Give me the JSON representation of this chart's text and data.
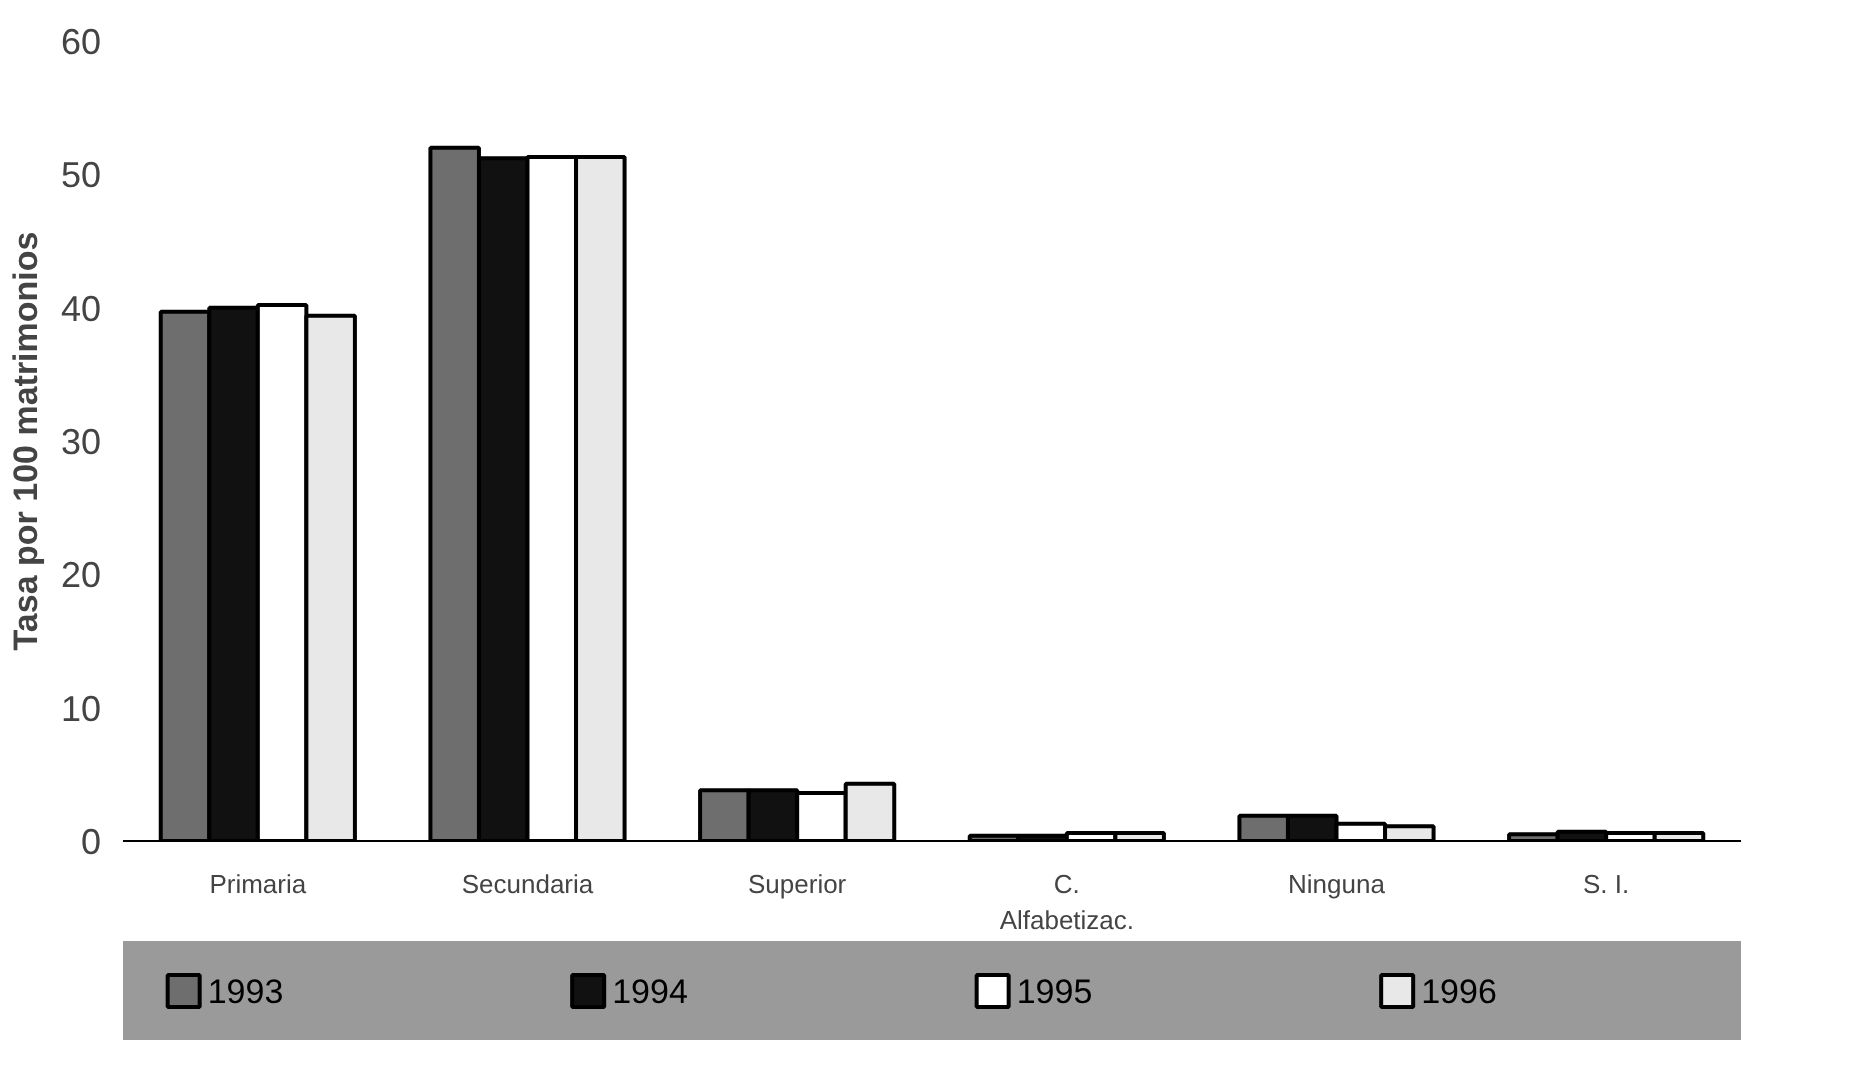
{
  "chart_data": {
    "type": "bar",
    "ylabel": "Tasa por 100 matrimonios",
    "categories": [
      "Primaria",
      "Secundaria",
      "Superior",
      "C.\nAlfabetizac.",
      "Ninguna",
      "S. I."
    ],
    "series": [
      {
        "name": "1993",
        "color": "#6e6e6e",
        "values": [
          39.7,
          52,
          3.8,
          0.4,
          1.9,
          0.5
        ]
      },
      {
        "name": "1994",
        "color": "#111111",
        "values": [
          40,
          51.2,
          3.8,
          0.4,
          1.9,
          0.7
        ]
      },
      {
        "name": "1995",
        "color": "#ffffff",
        "values": [
          40.2,
          51.3,
          3.6,
          0.6,
          1.3,
          0.6
        ]
      },
      {
        "name": "1996",
        "color": "#e8e8e8",
        "values": [
          39.4,
          51.3,
          4.3,
          0.6,
          1.1,
          0.6
        ]
      }
    ],
    "ylim": [
      0,
      60
    ],
    "yticks": [
      0,
      10,
      20,
      30,
      40,
      50,
      60
    ],
    "legend": "bottom"
  }
}
